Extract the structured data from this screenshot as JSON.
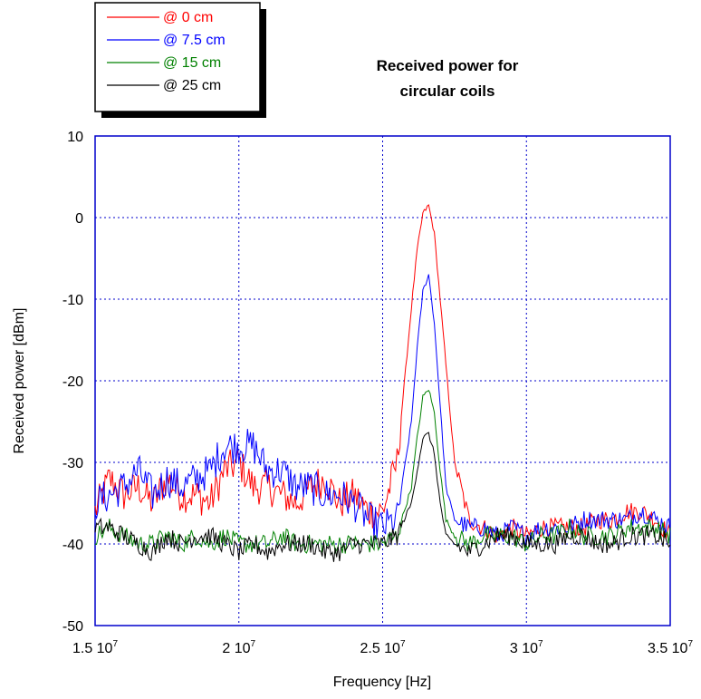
{
  "chart_data": {
    "type": "line",
    "title_lines": [
      "Received power for",
      "circular coils"
    ],
    "xlabel": "Frequency [Hz]",
    "ylabel": "Received power [dBm]",
    "xlim": [
      15000000,
      35000000
    ],
    "ylim": [
      -50,
      10
    ],
    "x_ticks": [
      {
        "value": 15000000,
        "mantissa": "1.5 10",
        "exp": "7"
      },
      {
        "value": 20000000,
        "mantissa": "2 10",
        "exp": "7"
      },
      {
        "value": 25000000,
        "mantissa": "2.5 10",
        "exp": "7"
      },
      {
        "value": 30000000,
        "mantissa": "3 10",
        "exp": "7"
      },
      {
        "value": 35000000,
        "mantissa": "3.5 10",
        "exp": "7"
      }
    ],
    "y_ticks": [
      {
        "value": 10,
        "label": "10"
      },
      {
        "value": 0,
        "label": "0"
      },
      {
        "value": -10,
        "label": "-10"
      },
      {
        "value": -20,
        "label": "-20"
      },
      {
        "value": -30,
        "label": "-30"
      },
      {
        "value": -40,
        "label": "-40"
      },
      {
        "value": -50,
        "label": "-50"
      }
    ],
    "grid": true,
    "legend_position": "top-left",
    "x_mhz": [
      15.0,
      15.5,
      16.0,
      16.5,
      17.0,
      17.5,
      18.0,
      18.5,
      19.0,
      19.5,
      20.0,
      20.5,
      21.0,
      21.5,
      22.0,
      22.5,
      23.0,
      23.5,
      24.0,
      24.5,
      25.0,
      25.5,
      26.0,
      26.2,
      26.4,
      26.6,
      26.8,
      27.0,
      27.2,
      27.5,
      28.0,
      28.5,
      29.0,
      29.5,
      30.0,
      30.5,
      31.0,
      31.5,
      32.0,
      32.5,
      33.0,
      33.5,
      34.0,
      34.5,
      35.0
    ],
    "series": [
      {
        "name": "@ 0 cm",
        "color": "#ff0000",
        "values": [
          -36,
          -32,
          -34,
          -33,
          -35,
          -32,
          -34,
          -34,
          -35,
          -31,
          -30,
          -33,
          -33,
          -34,
          -35,
          -33,
          -32,
          -35,
          -34,
          -36,
          -36,
          -30,
          -11,
          -4,
          0.5,
          1.5,
          -2,
          -10,
          -18,
          -30,
          -37,
          -38,
          -39,
          -38,
          -39,
          -38,
          -38,
          -38,
          -38,
          -37,
          -37,
          -36,
          -36,
          -37,
          -39
        ]
      },
      {
        "name": "@ 7.5 cm",
        "color": "#0000ff",
        "values": [
          -35,
          -34,
          -33,
          -31,
          -34,
          -32,
          -33,
          -32,
          -31,
          -28,
          -28,
          -28,
          -31,
          -31,
          -33,
          -33,
          -34,
          -34,
          -35,
          -37,
          -38,
          -37,
          -25,
          -16,
          -9,
          -7,
          -13,
          -23,
          -33,
          -37,
          -38,
          -38,
          -39,
          -38,
          -39,
          -38,
          -38,
          -38,
          -37,
          -37,
          -37,
          -37,
          -36,
          -37,
          -38
        ]
      },
      {
        "name": "@ 15 cm",
        "color": "#008000",
        "values": [
          -39,
          -38,
          -39,
          -40,
          -40,
          -39,
          -40,
          -39,
          -40,
          -39,
          -40,
          -40,
          -40,
          -39,
          -40,
          -40,
          -40,
          -40,
          -40,
          -40,
          -40,
          -39,
          -33,
          -27,
          -22,
          -21,
          -24,
          -31,
          -37,
          -39,
          -40,
          -39,
          -39,
          -39,
          -40,
          -39,
          -39,
          -38,
          -39,
          -39,
          -39,
          -38,
          -38,
          -38,
          -39
        ]
      },
      {
        "name": "@ 25 cm",
        "color": "#000000",
        "values": [
          -38,
          -38,
          -39,
          -40,
          -41,
          -39,
          -40,
          -39,
          -39,
          -40,
          -41,
          -40,
          -41,
          -40,
          -40,
          -40,
          -41,
          -41,
          -40,
          -40,
          -40,
          -39,
          -35,
          -31,
          -27,
          -26.5,
          -29,
          -35,
          -39,
          -40,
          -41,
          -40,
          -39,
          -39,
          -40,
          -40,
          -40,
          -39,
          -39,
          -40,
          -40,
          -39,
          -39,
          -39,
          -40
        ]
      }
    ]
  }
}
